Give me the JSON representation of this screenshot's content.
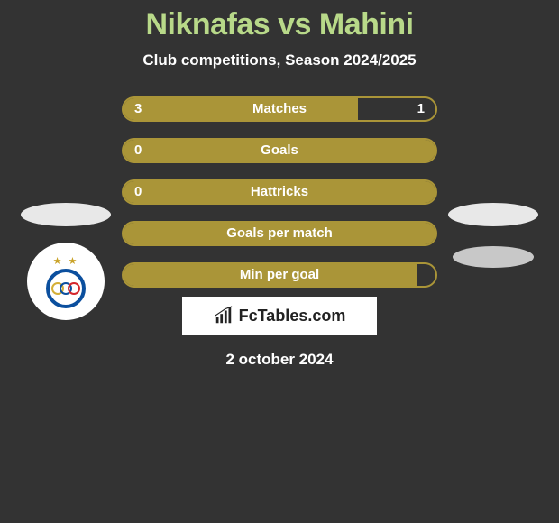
{
  "title": "Niknafas vs Mahini",
  "subtitle": "Club competitions, Season 2024/2025",
  "date": "2 october 2024",
  "brand": "FcTables.com",
  "colors": {
    "background": "#333333",
    "title": "#b8d989",
    "bar_fill": "#aa9538",
    "bar_border": "#aa9538",
    "text": "#ffffff"
  },
  "bars": [
    {
      "label": "Matches",
      "left": "3",
      "right": "1",
      "left_pct": 75
    },
    {
      "label": "Goals",
      "left": "0",
      "right": "",
      "left_pct": 100
    },
    {
      "label": "Hattricks",
      "left": "0",
      "right": "",
      "left_pct": 100
    },
    {
      "label": "Goals per match",
      "left": "",
      "right": "",
      "left_pct": 100
    },
    {
      "label": "Min per goal",
      "left": "",
      "right": "",
      "left_pct": 94
    }
  ]
}
